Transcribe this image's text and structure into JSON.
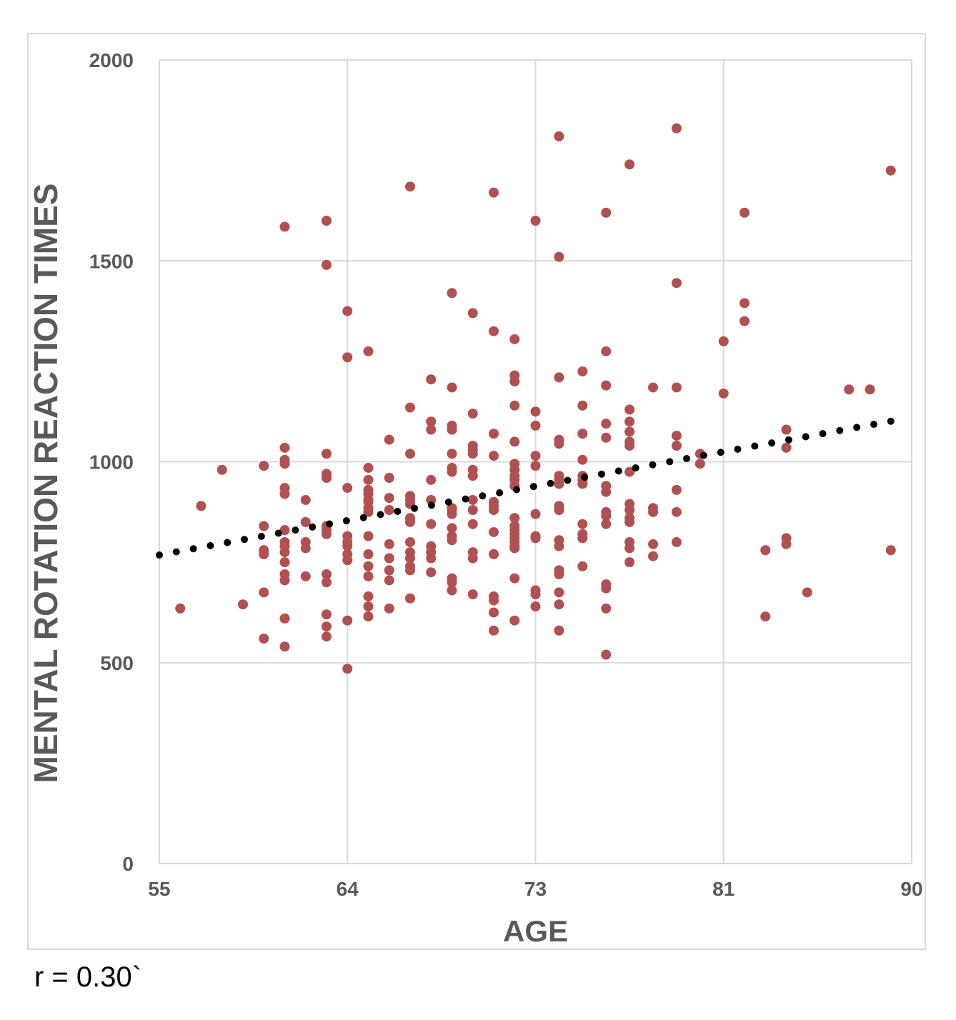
{
  "chart_data": {
    "type": "scatter",
    "title": "",
    "xlabel": "AGE",
    "ylabel": "MENTAL ROTATION REACTION TIMES",
    "x_ticks": [
      "55",
      "64",
      "73",
      "81",
      "90"
    ],
    "x_tick_values": [
      55,
      64,
      73,
      81,
      90
    ],
    "y_ticks": [
      "0",
      "500",
      "1000",
      "1500",
      "2000"
    ],
    "y_tick_values": [
      0,
      500,
      1000,
      1500,
      2000
    ],
    "xlim": [
      55,
      90
    ],
    "ylim": [
      0,
      2000
    ],
    "grid": true,
    "legend": "none",
    "marker_color": "#b05050",
    "trendline": {
      "type": "linear",
      "style": "dotted",
      "color": "#000000",
      "x": [
        55,
        89
      ],
      "y": [
        768,
        1101
      ]
    },
    "points": [
      [
        56,
        635
      ],
      [
        57,
        890
      ],
      [
        58,
        980
      ],
      [
        59,
        645
      ],
      [
        60,
        990
      ],
      [
        60,
        840
      ],
      [
        60,
        780
      ],
      [
        60,
        770
      ],
      [
        60,
        675
      ],
      [
        60,
        560
      ],
      [
        61,
        1035
      ],
      [
        61,
        1005
      ],
      [
        61,
        995
      ],
      [
        61,
        935
      ],
      [
        61,
        920
      ],
      [
        61,
        830
      ],
      [
        61,
        800
      ],
      [
        61,
        790
      ],
      [
        61,
        775
      ],
      [
        61,
        750
      ],
      [
        61,
        720
      ],
      [
        61,
        705
      ],
      [
        61,
        610
      ],
      [
        61,
        540
      ],
      [
        61,
        1585
      ],
      [
        62,
        905
      ],
      [
        62,
        850
      ],
      [
        62,
        800
      ],
      [
        62,
        785
      ],
      [
        62,
        715
      ],
      [
        63,
        1600
      ],
      [
        63,
        1490
      ],
      [
        63,
        1020
      ],
      [
        63,
        970
      ],
      [
        63,
        960
      ],
      [
        63,
        840
      ],
      [
        63,
        830
      ],
      [
        63,
        820
      ],
      [
        63,
        720
      ],
      [
        63,
        700
      ],
      [
        63,
        620
      ],
      [
        63,
        590
      ],
      [
        63,
        565
      ],
      [
        64,
        1375
      ],
      [
        64,
        1260
      ],
      [
        64,
        935
      ],
      [
        64,
        815
      ],
      [
        64,
        800
      ],
      [
        64,
        790
      ],
      [
        64,
        770
      ],
      [
        64,
        755
      ],
      [
        64,
        605
      ],
      [
        64,
        485
      ],
      [
        65,
        1275
      ],
      [
        65,
        985
      ],
      [
        65,
        955
      ],
      [
        65,
        930
      ],
      [
        65,
        920
      ],
      [
        65,
        905
      ],
      [
        65,
        900
      ],
      [
        65,
        885
      ],
      [
        65,
        875
      ],
      [
        65,
        815
      ],
      [
        65,
        770
      ],
      [
        65,
        740
      ],
      [
        65,
        715
      ],
      [
        65,
        665
      ],
      [
        65,
        640
      ],
      [
        65,
        615
      ],
      [
        66,
        1055
      ],
      [
        66,
        960
      ],
      [
        66,
        910
      ],
      [
        66,
        880
      ],
      [
        66,
        795
      ],
      [
        66,
        760
      ],
      [
        66,
        730
      ],
      [
        66,
        705
      ],
      [
        66,
        635
      ],
      [
        67,
        1685
      ],
      [
        67,
        1135
      ],
      [
        67,
        1020
      ],
      [
        67,
        915
      ],
      [
        67,
        905
      ],
      [
        67,
        895
      ],
      [
        67,
        860
      ],
      [
        67,
        850
      ],
      [
        67,
        800
      ],
      [
        67,
        775
      ],
      [
        67,
        760
      ],
      [
        67,
        740
      ],
      [
        67,
        730
      ],
      [
        67,
        660
      ],
      [
        68,
        1205
      ],
      [
        68,
        1100
      ],
      [
        68,
        1080
      ],
      [
        68,
        955
      ],
      [
        68,
        905
      ],
      [
        68,
        845
      ],
      [
        68,
        790
      ],
      [
        68,
        775
      ],
      [
        68,
        760
      ],
      [
        68,
        725
      ],
      [
        69,
        1420
      ],
      [
        69,
        1185
      ],
      [
        69,
        1090
      ],
      [
        69,
        1080
      ],
      [
        69,
        1020
      ],
      [
        69,
        985
      ],
      [
        69,
        975
      ],
      [
        69,
        885
      ],
      [
        69,
        880
      ],
      [
        69,
        870
      ],
      [
        69,
        835
      ],
      [
        69,
        815
      ],
      [
        69,
        805
      ],
      [
        69,
        710
      ],
      [
        69,
        700
      ],
      [
        69,
        680
      ],
      [
        70,
        1370
      ],
      [
        70,
        1120
      ],
      [
        70,
        1040
      ],
      [
        70,
        1030
      ],
      [
        70,
        1020
      ],
      [
        70,
        980
      ],
      [
        70,
        965
      ],
      [
        70,
        905
      ],
      [
        70,
        880
      ],
      [
        70,
        845
      ],
      [
        70,
        775
      ],
      [
        70,
        760
      ],
      [
        70,
        670
      ],
      [
        71,
        1670
      ],
      [
        71,
        1325
      ],
      [
        71,
        1070
      ],
      [
        71,
        1015
      ],
      [
        71,
        900
      ],
      [
        71,
        890
      ],
      [
        71,
        880
      ],
      [
        71,
        825
      ],
      [
        71,
        770
      ],
      [
        71,
        665
      ],
      [
        71,
        655
      ],
      [
        71,
        625
      ],
      [
        71,
        580
      ],
      [
        72,
        1305
      ],
      [
        72,
        1215
      ],
      [
        72,
        1200
      ],
      [
        72,
        1140
      ],
      [
        72,
        1050
      ],
      [
        72,
        995
      ],
      [
        72,
        980
      ],
      [
        72,
        965
      ],
      [
        72,
        955
      ],
      [
        72,
        940
      ],
      [
        72,
        860
      ],
      [
        72,
        840
      ],
      [
        72,
        830
      ],
      [
        72,
        820
      ],
      [
        72,
        810
      ],
      [
        72,
        800
      ],
      [
        72,
        790
      ],
      [
        72,
        785
      ],
      [
        72,
        710
      ],
      [
        72,
        605
      ],
      [
        73,
        1600
      ],
      [
        73,
        1125
      ],
      [
        73,
        1090
      ],
      [
        73,
        1015
      ],
      [
        73,
        990
      ],
      [
        73,
        870
      ],
      [
        73,
        815
      ],
      [
        73,
        810
      ],
      [
        73,
        680
      ],
      [
        73,
        670
      ],
      [
        73,
        640
      ],
      [
        74,
        1810
      ],
      [
        74,
        1510
      ],
      [
        74,
        1210
      ],
      [
        74,
        1055
      ],
      [
        74,
        1045
      ],
      [
        74,
        965
      ],
      [
        74,
        955
      ],
      [
        74,
        945
      ],
      [
        74,
        890
      ],
      [
        74,
        880
      ],
      [
        74,
        805
      ],
      [
        74,
        790
      ],
      [
        74,
        730
      ],
      [
        74,
        720
      ],
      [
        74,
        675
      ],
      [
        74,
        645
      ],
      [
        74,
        580
      ],
      [
        75,
        1225
      ],
      [
        75,
        1140
      ],
      [
        75,
        1070
      ],
      [
        75,
        1005
      ],
      [
        75,
        965
      ],
      [
        75,
        955
      ],
      [
        75,
        945
      ],
      [
        75,
        845
      ],
      [
        75,
        820
      ],
      [
        75,
        810
      ],
      [
        75,
        740
      ],
      [
        76,
        1620
      ],
      [
        76,
        1275
      ],
      [
        76,
        1190
      ],
      [
        76,
        1095
      ],
      [
        76,
        1060
      ],
      [
        76,
        940
      ],
      [
        76,
        925
      ],
      [
        76,
        875
      ],
      [
        76,
        865
      ],
      [
        76,
        845
      ],
      [
        76,
        695
      ],
      [
        76,
        685
      ],
      [
        76,
        635
      ],
      [
        76,
        520
      ],
      [
        77,
        1740
      ],
      [
        77,
        1130
      ],
      [
        77,
        1100
      ],
      [
        77,
        1075
      ],
      [
        77,
        1050
      ],
      [
        77,
        1040
      ],
      [
        77,
        975
      ],
      [
        77,
        895
      ],
      [
        77,
        880
      ],
      [
        77,
        860
      ],
      [
        77,
        850
      ],
      [
        77,
        800
      ],
      [
        77,
        785
      ],
      [
        77,
        750
      ],
      [
        78,
        1185
      ],
      [
        78,
        885
      ],
      [
        78,
        875
      ],
      [
        78,
        795
      ],
      [
        78,
        765
      ],
      [
        79,
        1830
      ],
      [
        79,
        1445
      ],
      [
        79,
        1185
      ],
      [
        79,
        1065
      ],
      [
        79,
        1040
      ],
      [
        79,
        930
      ],
      [
        79,
        875
      ],
      [
        79,
        800
      ],
      [
        80,
        1020
      ],
      [
        80,
        995
      ],
      [
        81,
        1300
      ],
      [
        81,
        1170
      ],
      [
        82,
        1620
      ],
      [
        82,
        1395
      ],
      [
        82,
        1350
      ],
      [
        83,
        780
      ],
      [
        83,
        615
      ],
      [
        84,
        1080
      ],
      [
        84,
        1035
      ],
      [
        84,
        810
      ],
      [
        84,
        795
      ],
      [
        85,
        675
      ],
      [
        87,
        1180
      ],
      [
        88,
        1180
      ],
      [
        89,
        1725
      ],
      [
        89,
        780
      ]
    ]
  },
  "footer": {
    "correlation_label": "r = 0.30`"
  }
}
